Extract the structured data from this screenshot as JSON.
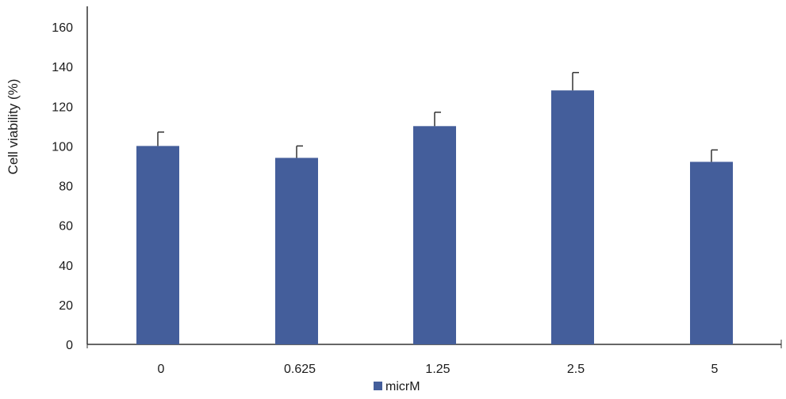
{
  "chart_data": {
    "type": "bar",
    "categories": [
      "0",
      "0.625",
      "1.25",
      "2.5",
      "5"
    ],
    "series": [
      {
        "name": "micrM",
        "values": [
          100,
          94,
          110,
          128,
          92
        ],
        "error": [
          7,
          6,
          7,
          9,
          6
        ]
      }
    ],
    "xlabel": "",
    "ylabel": "Cell viability (%)",
    "ylim": [
      0,
      160
    ],
    "yticks": [
      "0",
      "20",
      "40",
      "60",
      "80",
      "100",
      "120",
      "140",
      "160"
    ],
    "grid": false,
    "legend": "bottom",
    "colors": {
      "bar": "#445E9B",
      "axis": "#333333",
      "errorbar": "#333333"
    }
  }
}
